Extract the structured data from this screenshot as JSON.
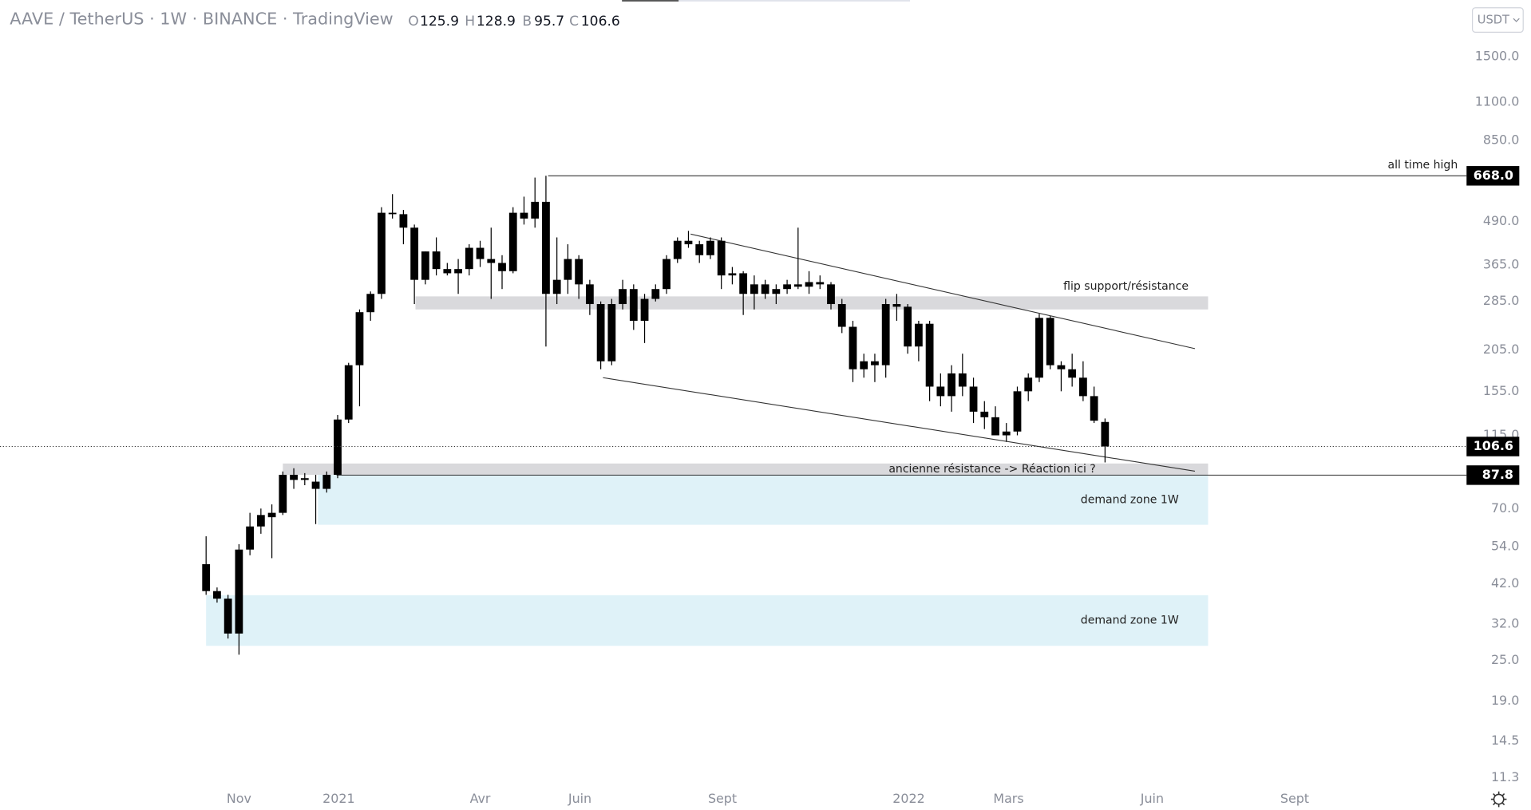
{
  "chart_data": {
    "type": "candlestick",
    "title": "AAVE / TetherUS · 1W · BINANCE · TradingView",
    "ohlc_header": [
      {
        "label": "O",
        "value": 125.9
      },
      {
        "label": "H",
        "value": 128.9
      },
      {
        "label": "B",
        "value": 95.7
      },
      {
        "label": "C",
        "value": 106.6
      }
    ],
    "currency": "USDT",
    "color": "#000000",
    "log_scale": true,
    "xlim": [
      -18.8,
      114.8
    ],
    "xticks": [
      {
        "value": 3.0,
        "label": "Nov"
      },
      {
        "value": 12.1,
        "label": "2021"
      },
      {
        "value": 25.0,
        "label": "Avr"
      },
      {
        "value": 34.1,
        "label": "Juin"
      },
      {
        "value": 47.1,
        "label": "Sept"
      },
      {
        "value": 64.1,
        "label": "2022"
      },
      {
        "value": 73.2,
        "label": "Mars"
      },
      {
        "value": 86.3,
        "label": "Juin"
      },
      {
        "value": 99.3,
        "label": "Sept"
      }
    ],
    "ylim": [
      10.7,
      2200
    ],
    "yticks": [
      {
        "value": 1500,
        "label": "1500.0"
      },
      {
        "value": 1100,
        "label": "1100.0"
      },
      {
        "value": 850,
        "label": "850.0"
      },
      {
        "value": 490,
        "label": "490.0"
      },
      {
        "value": 365,
        "label": "365.0"
      },
      {
        "value": 285,
        "label": "285.0"
      },
      {
        "value": 205,
        "label": "205.0"
      },
      {
        "value": 155,
        "label": "155.0"
      },
      {
        "value": 115,
        "label": "115.0"
      },
      {
        "value": 70,
        "label": "70.0"
      },
      {
        "value": 54,
        "label": "54.0"
      },
      {
        "value": 42,
        "label": "42.0"
      },
      {
        "value": 32,
        "label": "32.0"
      },
      {
        "value": 25,
        "label": "25.0"
      },
      {
        "value": 19,
        "label": "19.0"
      },
      {
        "value": 14.5,
        "label": "14.5"
      },
      {
        "value": 11.3,
        "label": "11.3"
      }
    ],
    "open": [
      48,
      40,
      38,
      30,
      53,
      62,
      66,
      68,
      88,
      85,
      84,
      80,
      88,
      128,
      185,
      265,
      300,
      520,
      515,
      470,
      330,
      400,
      355,
      345,
      355,
      410,
      380,
      370,
      350,
      520,
      500,
      560,
      300,
      330,
      380,
      320,
      280,
      190,
      280,
      310,
      250,
      290,
      310,
      380,
      430,
      420,
      390,
      430,
      340,
      345,
      300,
      320,
      300,
      310,
      320,
      315,
      325,
      320,
      280,
      240,
      180,
      190,
      185,
      280,
      275,
      210,
      245,
      160,
      150,
      175,
      160,
      135,
      130,
      115,
      118,
      155,
      170,
      255,
      185,
      180,
      170,
      150,
      125.9
    ],
    "high": [
      58,
      41,
      39,
      55,
      68,
      70,
      72,
      90,
      92,
      89,
      88,
      90,
      132,
      188,
      270,
      305,
      540,
      590,
      530,
      480,
      400,
      440,
      370,
      380,
      420,
      430,
      470,
      390,
      540,
      580,
      660,
      668,
      440,
      420,
      390,
      330,
      285,
      290,
      330,
      320,
      300,
      320,
      390,
      440,
      460,
      430,
      440,
      440,
      360,
      350,
      340,
      330,
      320,
      330,
      470,
      350,
      340,
      325,
      290,
      250,
      200,
      200,
      290,
      300,
      280,
      250,
      250,
      175,
      185,
      200,
      170,
      145,
      140,
      125,
      160,
      175,
      262,
      258,
      190,
      200,
      190,
      160,
      128.9
    ],
    "low": [
      39,
      37,
      29,
      26,
      51,
      59,
      50,
      67,
      80,
      82,
      63,
      78,
      86,
      125,
      140,
      250,
      290,
      500,
      420,
      280,
      320,
      340,
      340,
      300,
      340,
      360,
      290,
      310,
      345,
      480,
      470,
      210,
      280,
      300,
      290,
      260,
      180,
      185,
      270,
      235,
      215,
      285,
      300,
      370,
      410,
      370,
      380,
      310,
      320,
      260,
      270,
      290,
      280,
      300,
      310,
      300,
      310,
      270,
      230,
      165,
      170,
      165,
      170,
      250,
      200,
      190,
      145,
      140,
      135,
      150,
      125,
      120,
      115,
      110,
      115,
      145,
      165,
      180,
      155,
      160,
      145,
      125,
      95.7
    ],
    "close": [
      40,
      38,
      30,
      53,
      62,
      67,
      68,
      88,
      85,
      86,
      80,
      88,
      128,
      185,
      265,
      300,
      520,
      515,
      470,
      330,
      400,
      355,
      345,
      355,
      410,
      380,
      370,
      350,
      520,
      500,
      560,
      300,
      330,
      380,
      320,
      280,
      190,
      280,
      310,
      250,
      290,
      310,
      380,
      430,
      420,
      390,
      430,
      340,
      345,
      300,
      320,
      300,
      310,
      320,
      315,
      325,
      320,
      280,
      240,
      180,
      190,
      185,
      280,
      275,
      210,
      245,
      160,
      150,
      175,
      160,
      135,
      130,
      115,
      118,
      155,
      170,
      255,
      185,
      180,
      170,
      150,
      127,
      106.6
    ],
    "zones": [
      {
        "label": "flip support/résistance",
        "low": 270,
        "high": 295,
        "x0": 19.1,
        "x1": 91.4,
        "color": "#d9d9dc"
      },
      {
        "label": "ancienne résistance -> Réaction ici ?",
        "low": 88,
        "high": 95,
        "x0": 7.0,
        "x1": 91.4,
        "color": "#d9d9dc"
      },
      {
        "label": "demand zone 1W",
        "low": 62.7,
        "high": 88,
        "x0": 10.2,
        "x1": 91.4,
        "color": "#dff2f8"
      },
      {
        "label": "demand zone 1W",
        "low": 27.6,
        "high": 38.9,
        "x0": 0,
        "x1": 91.4,
        "color": "#dff2f8"
      }
    ],
    "trendlines": [
      {
        "x": [
          44.2,
          90.2
        ],
        "y": [
          450,
          207
        ]
      },
      {
        "x": [
          36.2,
          90.2
        ],
        "y": [
          170,
          90.2
        ]
      }
    ],
    "levels": [
      {
        "label": "all time high",
        "value": 668,
        "value_label": "668.0",
        "x0": 31.2
      },
      {
        "value": 87.8,
        "value_label": "87.8",
        "x0": 11.9
      }
    ],
    "last_price": {
      "value": 106.6,
      "label": "106.6"
    }
  }
}
